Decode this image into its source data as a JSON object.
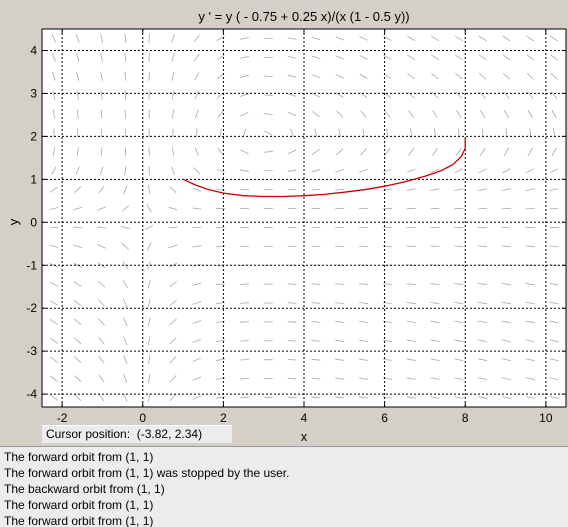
{
  "chart_data": {
    "type": "line",
    "title": "y ' = y ( - 0.75 + 0.25 x)/(x (1 - 0.5 y))",
    "xlabel": "x",
    "ylabel": "y",
    "xlim": [
      -2.5,
      10.5
    ],
    "ylim": [
      -4.3,
      4.5
    ],
    "x_ticks": [
      -2,
      0,
      2,
      4,
      6,
      8,
      10
    ],
    "y_ticks": [
      -4,
      -3,
      -2,
      -1,
      0,
      1,
      2,
      3,
      4
    ],
    "grid": true,
    "series": [
      {
        "name": "orbit from (1, 1)",
        "color": "#cc0000",
        "x": [
          1.0,
          1.3,
          1.6,
          2.0,
          2.5,
          3.0,
          3.5,
          4.0,
          4.5,
          5.0,
          5.5,
          6.0,
          6.5,
          7.0,
          7.4,
          7.7,
          7.9,
          8.0,
          8.0
        ],
        "y": [
          1.0,
          0.87,
          0.77,
          0.68,
          0.62,
          0.6,
          0.6,
          0.62,
          0.65,
          0.7,
          0.76,
          0.84,
          0.94,
          1.07,
          1.2,
          1.35,
          1.53,
          1.72,
          1.95
        ]
      }
    ]
  },
  "cursor": {
    "label": "Cursor position:",
    "value": "(-3.82, 2.34)"
  },
  "messages": [
    "The forward orbit from (1, 1)",
    "The forward orbit from (1, 1) was stopped by the user.",
    "The backward orbit from (1, 1)",
    "The forward orbit from (1, 1)",
    "The forward orbit from (1, 1)"
  ],
  "colors": {
    "background": "#d4d0c8",
    "plot_area": "#ffffff",
    "field_lines": "#a8a8a8",
    "orbit": "#cc0000"
  }
}
